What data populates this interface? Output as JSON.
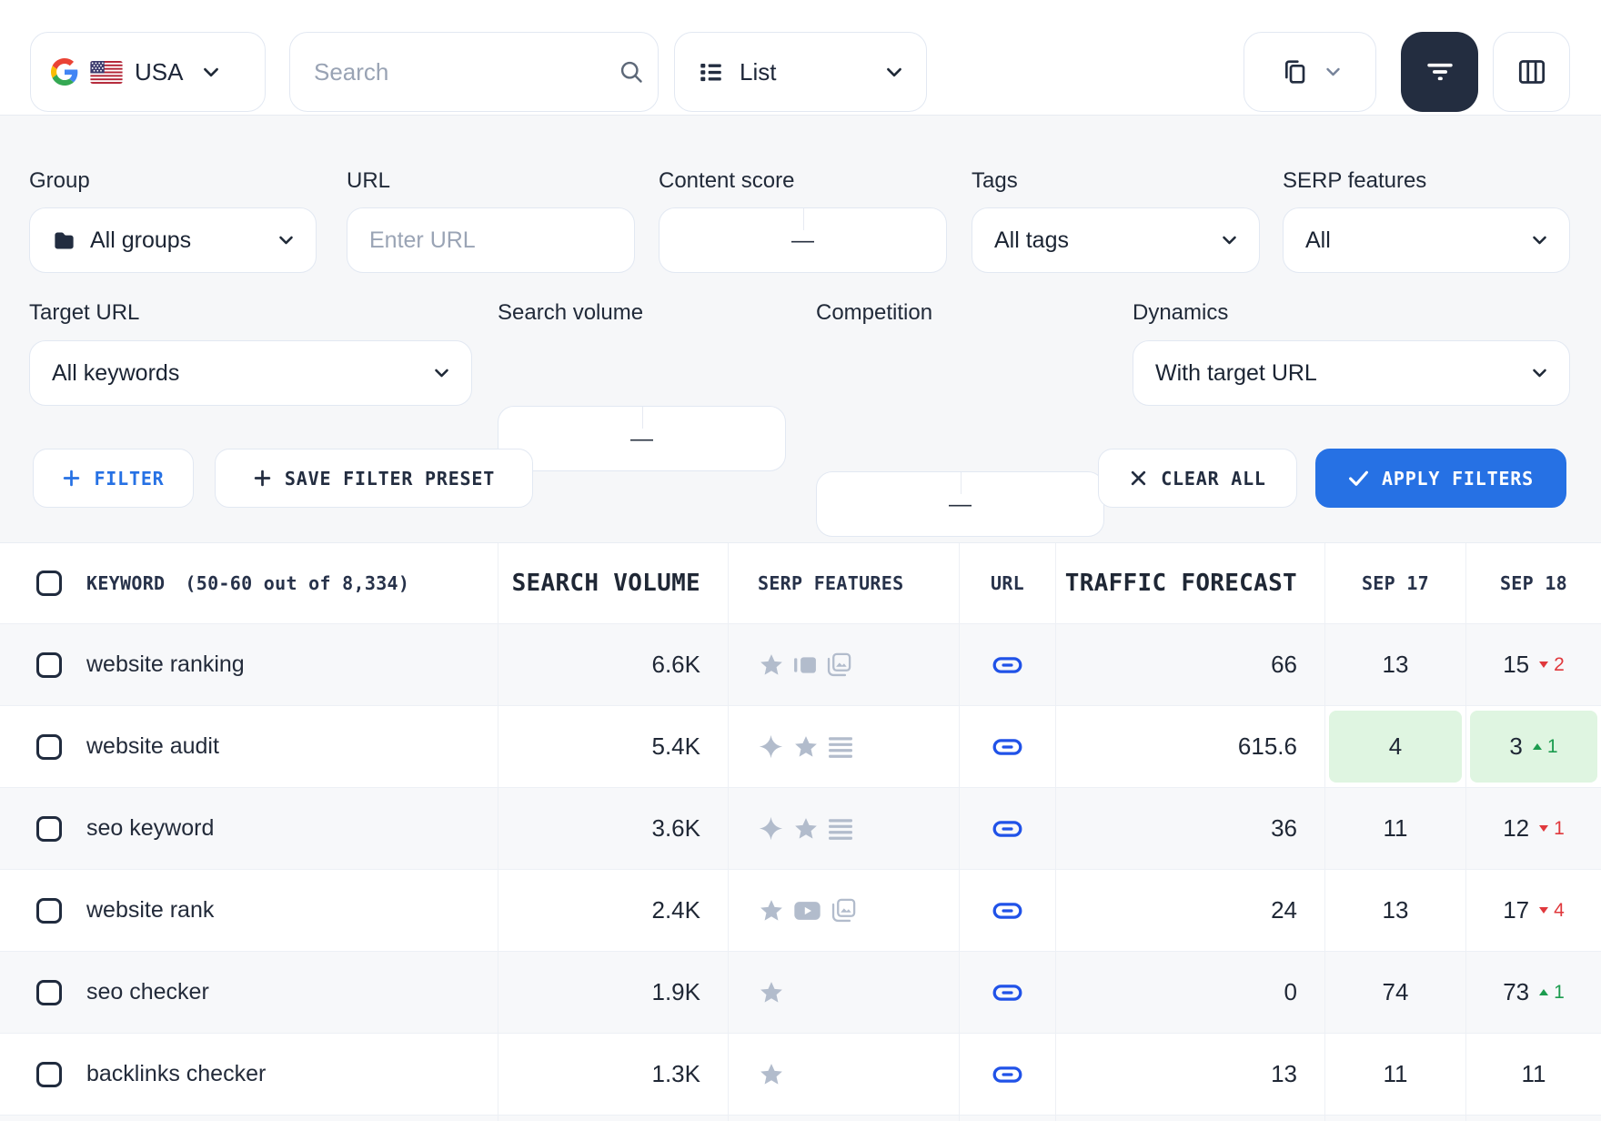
{
  "toolbar": {
    "country": {
      "label": "USA"
    },
    "search": {
      "placeholder": "Search"
    },
    "view": {
      "label": "List"
    }
  },
  "filters": {
    "group": {
      "label": "Group",
      "value": "All groups"
    },
    "url": {
      "label": "URL",
      "placeholder": "Enter URL"
    },
    "content_score": {
      "label": "Content score",
      "separator": "—"
    },
    "tags": {
      "label": "Tags",
      "value": "All tags"
    },
    "serp_features": {
      "label": "SERP features",
      "value": "All"
    },
    "target_url": {
      "label": "Target URL",
      "value": "All keywords"
    },
    "search_volume": {
      "label": "Search volume",
      "separator": "—"
    },
    "competition": {
      "label": "Competition",
      "separator": "—"
    },
    "dynamics": {
      "label": "Dynamics",
      "value": "With target URL"
    },
    "filter_button": "FILTER",
    "save_preset_button": "SAVE FILTER PRESET",
    "clear_all_button": "CLEAR ALL",
    "apply_button": "APPLY FILTERS"
  },
  "table": {
    "header": {
      "keyword": "KEYWORD",
      "keyword_count": "(50-60 out of 8,334)",
      "search_volume": "SEARCH VOLUME",
      "serp_features": "SERP FEATURES",
      "url": "URL",
      "traffic_forecast": "TRAFFIC FORECAST",
      "date1": "SEP 17",
      "date2": "SEP 18"
    },
    "rows": [
      {
        "keyword": "website ranking",
        "search_volume": "6.6K",
        "serp_features": [
          "star",
          "carousel",
          "images"
        ],
        "url_icon": "link",
        "traffic_forecast": "66",
        "sep17": {
          "value": "13"
        },
        "sep18": {
          "value": "15",
          "change": "2",
          "dir": "down"
        }
      },
      {
        "keyword": "website audit",
        "search_volume": "5.4K",
        "serp_features": [
          "sparkle",
          "star",
          "snippet"
        ],
        "url_icon": "link",
        "traffic_forecast": "615.6",
        "sep17": {
          "value": "4",
          "highlight": true
        },
        "sep18": {
          "value": "3",
          "change": "1",
          "dir": "up",
          "highlight": true
        }
      },
      {
        "keyword": "seo keyword",
        "search_volume": "3.6K",
        "serp_features": [
          "sparkle",
          "star",
          "snippet"
        ],
        "url_icon": "link",
        "traffic_forecast": "36",
        "sep17": {
          "value": "11"
        },
        "sep18": {
          "value": "12",
          "change": "1",
          "dir": "down"
        }
      },
      {
        "keyword": "website rank",
        "search_volume": "2.4K",
        "serp_features": [
          "star",
          "video",
          "images"
        ],
        "url_icon": "link",
        "traffic_forecast": "24",
        "sep17": {
          "value": "13"
        },
        "sep18": {
          "value": "17",
          "change": "4",
          "dir": "down"
        }
      },
      {
        "keyword": "seo checker",
        "search_volume": "1.9K",
        "serp_features": [
          "star"
        ],
        "url_icon": "link",
        "traffic_forecast": "0",
        "sep17": {
          "value": "74"
        },
        "sep18": {
          "value": "73",
          "change": "1",
          "dir": "up"
        }
      },
      {
        "keyword": "backlinks checker",
        "search_volume": "1.3K",
        "serp_features": [
          "star"
        ],
        "url_icon": "link",
        "traffic_forecast": "13",
        "sep17": {
          "value": "11"
        },
        "sep18": {
          "value": "11"
        }
      }
    ]
  },
  "colors": {
    "accent_blue": "#2671E4",
    "link_blue": "#2052E8",
    "positive_green": "#1C9C4F",
    "positive_bg": "#DFF5E1",
    "negative_red": "#E0383C",
    "icon_gray": "#B2BCCC",
    "dark_navy": "#232D40",
    "page_bg": "#F6F7F9"
  }
}
